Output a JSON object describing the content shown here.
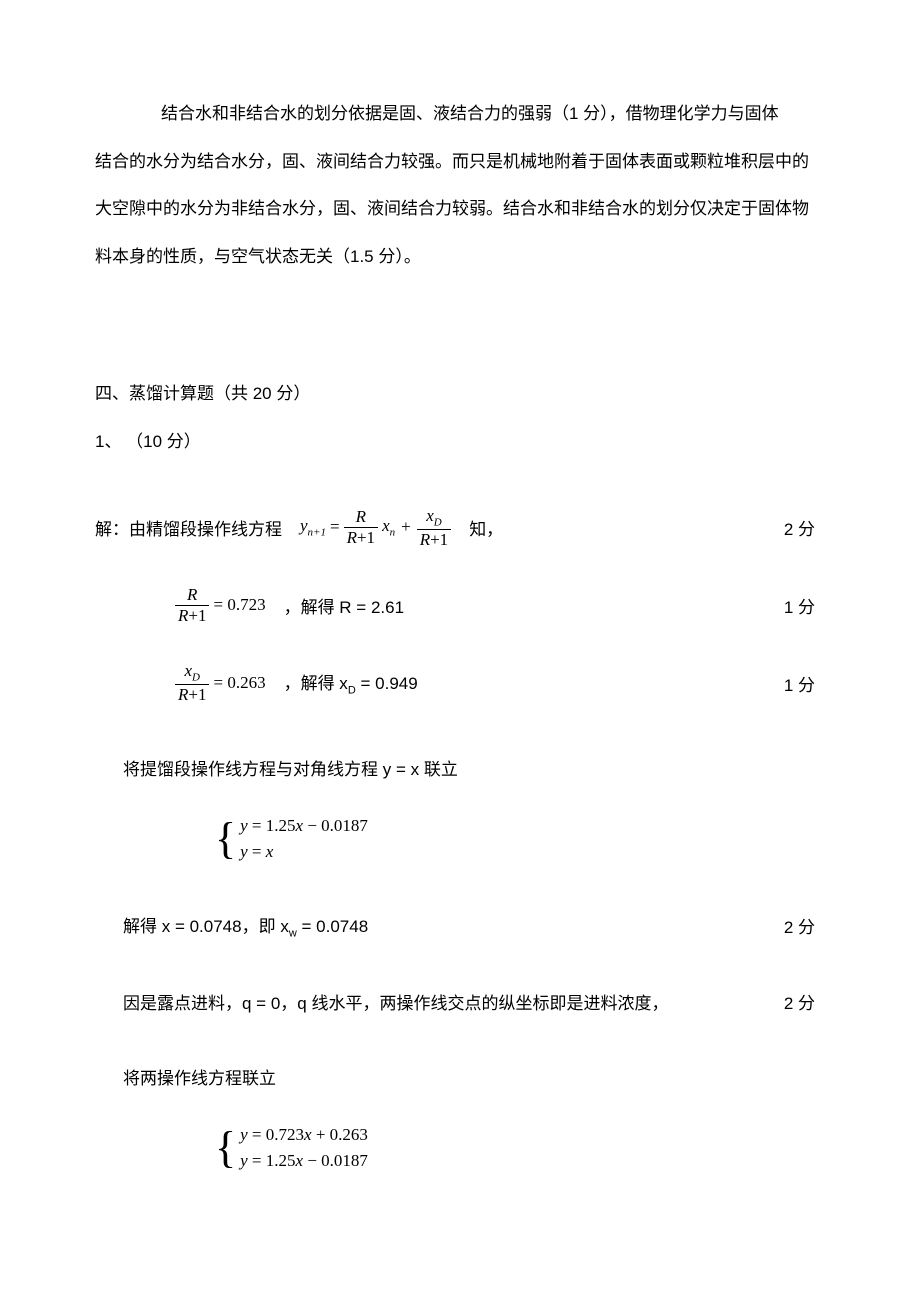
{
  "intro_para_line1": "结合水和非结合水的划分依据是固、液结合力的强弱（1 分），借物理化学力与固体",
  "intro_para_line2": "结合的水分为结合水分，固、液间结合力较强。而只是机械地附着于固体表面或颗粒堆积层中的",
  "intro_para_line3": "大空隙中的水分为非结合水分，固、液间结合力较弱。结合水和非结合水的划分仅决定于固体物",
  "intro_para_line4": "料本身的性质，与空气状态无关（1.5 分）。",
  "section_title": "四、蒸馏计算题（共 20 分）",
  "q1_label": " 1、  （10 分）",
  "solution_label": "解：由精馏段操作线方程",
  "know_label": "知，",
  "score_2": "2 分",
  "score_1": "1 分",
  "eq1": {
    "y_lhs_base": "y",
    "y_lhs_sub": "n+1",
    "frac1_num": "R",
    "frac1_den_l": "R",
    "frac1_den_r": "+1",
    "x_base": "x",
    "x_sub": "n",
    "frac2_num_base": "x",
    "frac2_num_sub": "D",
    "frac2_den_l": "R",
    "frac2_den_r": "+1"
  },
  "eq2": {
    "frac_num": "R",
    "frac_den_l": "R",
    "frac_den_r": "+1",
    "val": "= 0.723",
    "solve": "，解得 R = 2.61"
  },
  "eq3": {
    "frac_num_base": "x",
    "frac_num_sub": "D",
    "frac_den_l": "R",
    "frac_den_r": "+1",
    "val": "= 0.263",
    "solve_a": "，解得 x",
    "solve_sub": "D",
    "solve_b": " = 0.949"
  },
  "line_union": "将提馏段操作线方程与对角线方程 y = x 联立",
  "sys1_line1": "y = 1.25x − 0.0187",
  "sys1_line2": "y = x",
  "solve_x_a": "解得 x = 0.0748，即 x",
  "solve_x_sub": "w",
  "solve_x_b": " = 0.0748",
  "dew_line": "因是露点进料，q = 0，q 线水平，两操作线交点的纵坐标即是进料浓度，",
  "union2": "将两操作线方程联立",
  "sys2_line1": "y = 0.723x + 0.263",
  "sys2_line2": "y = 1.25x − 0.0187",
  "colors": {
    "text": "#000000",
    "bg": "#ffffff"
  }
}
